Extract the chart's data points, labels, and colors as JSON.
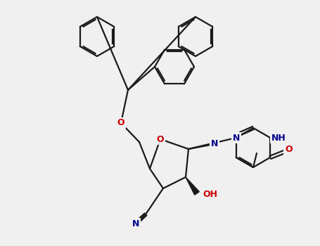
{
  "bg_color": "#f0f0f0",
  "bond_color": "#1a1a1a",
  "atom_colors": {
    "O": "#cc0000",
    "N": "#00008b",
    "C": "#1a1a1a"
  },
  "lw": 1.6,
  "lw_thick": 3.0,
  "figsize": [
    4.55,
    3.5
  ],
  "dpi": 100,
  "fontsize": 9,
  "ring_r": 25
}
